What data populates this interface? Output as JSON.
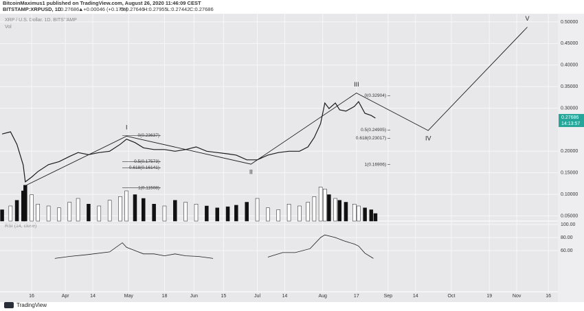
{
  "header": {
    "publisher": "BitcoinMaximus1 published on TradingView.com, August 26, 2020 11:46:09 CEST",
    "symbol": "BITSTAMP:XRPUSD, 1D",
    "last": "0.27686",
    "change": "▲+0.00046 (+0.17%)",
    "ohlc": [
      "O:0.27646",
      "H:0.27955",
      "L:0.27442",
      "C:0.27686"
    ]
  },
  "chart_data": {
    "type": "line",
    "title": "XRP / U.S. Dollar, 1D, BITSTAMP",
    "volume_label": "Vol",
    "x": [
      1,
      5,
      8,
      11,
      12,
      15,
      18,
      23,
      28,
      33,
      37,
      42,
      47,
      52,
      57,
      60,
      64,
      68,
      73,
      78,
      83,
      88,
      93,
      98,
      103,
      108,
      112,
      117,
      122,
      127,
      132,
      137,
      142,
      146,
      149,
      152,
      154,
      156,
      159,
      161,
      164,
      168,
      170,
      173,
      176,
      178
    ],
    "series": [
      {
        "name": "XRPUSD",
        "color": "#1a1a1a",
        "values": [
          0.24,
          0.245,
          0.216,
          0.168,
          0.129,
          0.14,
          0.153,
          0.169,
          0.176,
          0.188,
          0.197,
          0.192,
          0.197,
          0.2,
          0.216,
          0.228,
          0.22,
          0.208,
          0.204,
          0.204,
          0.2,
          0.204,
          0.21,
          0.2,
          0.197,
          0.194,
          0.191,
          0.18,
          0.18,
          0.191,
          0.197,
          0.2,
          0.2,
          0.21,
          0.232,
          0.264,
          0.312,
          0.299,
          0.312,
          0.296,
          0.293,
          0.304,
          0.315,
          0.288,
          0.283,
          0.27686
        ]
      }
    ],
    "volume": {
      "color": "#111111",
      "values": [
        30,
        40,
        55,
        80,
        95,
        70,
        45,
        40,
        35,
        50,
        60,
        45,
        40,
        55,
        65,
        80,
        70,
        60,
        45,
        40,
        55,
        50,
        45,
        40,
        35,
        38,
        42,
        50,
        60,
        35,
        30,
        45,
        40,
        50,
        65,
        90,
        85,
        70,
        60,
        55,
        50,
        45,
        40,
        35,
        30,
        20
      ],
      "lim": [
        0,
        100
      ]
    },
    "xlim": [
      0,
      264.5
    ],
    "ylim": [
      0.038,
      0.519
    ],
    "xticks": [
      {
        "value": 15,
        "label": "16"
      },
      {
        "value": 31,
        "label": "Apr"
      },
      {
        "value": 44,
        "label": "14"
      },
      {
        "value": 61,
        "label": "May"
      },
      {
        "value": 78,
        "label": "18"
      },
      {
        "value": 92,
        "label": "Jun"
      },
      {
        "value": 106,
        "label": "15"
      },
      {
        "value": 122,
        "label": "Jul"
      },
      {
        "value": 135,
        "label": "14"
      },
      {
        "value": 153,
        "label": "Aug"
      },
      {
        "value": 169,
        "label": "17"
      },
      {
        "value": 184,
        "label": "Sep"
      },
      {
        "value": 197,
        "label": "14"
      },
      {
        "value": 214,
        "label": "Oct"
      },
      {
        "value": 232,
        "label": "19"
      },
      {
        "value": 245,
        "label": "Nov"
      },
      {
        "value": 260,
        "label": "16"
      }
    ],
    "yticks": [
      {
        "value": 0.5,
        "label": "0.50000"
      },
      {
        "value": 0.45,
        "label": "0.45000"
      },
      {
        "value": 0.4,
        "label": "0.40000"
      },
      {
        "value": 0.35,
        "label": "0.35000"
      },
      {
        "value": 0.3,
        "label": "0.30000"
      },
      {
        "value": 0.2,
        "label": "0.20000"
      },
      {
        "value": 0.15,
        "label": "0.15000"
      },
      {
        "value": 0.1,
        "label": "0.10000"
      },
      {
        "value": 0.05,
        "label": "0.05000"
      }
    ],
    "grid": true,
    "price_tag": {
      "value": 0.27686,
      "label": "0.27686",
      "countdown": "14:13:57",
      "color": "#26a69a"
    },
    "waves": {
      "color": "#1a1a1a",
      "x": [
        12,
        60,
        119,
        169,
        203,
        250
      ],
      "values": [
        0.12,
        0.235,
        0.17,
        0.335,
        0.248,
        0.488
      ],
      "labels": [
        null,
        "I",
        "II",
        "III",
        "IV",
        "V"
      ]
    },
    "fibs": [
      {
        "value": 0.23637,
        "label": "0(0.23637)"
      },
      {
        "value": 0.17573,
        "label": "0.5(0.17573)"
      },
      {
        "value": 0.16141,
        "label": "0.618(0.16141)"
      },
      {
        "value": 0.11508,
        "label": "1(0.11508)"
      },
      {
        "value": 0.32904,
        "label": "0(0.32904)"
      },
      {
        "value": 0.24905,
        "label": "0.5(0.24905)"
      },
      {
        "value": 0.23017,
        "label": "0.618(0.23017)"
      },
      {
        "value": 0.16906,
        "label": "1(0.16906)"
      }
    ],
    "rsi": {
      "title": "RSI (14, close)",
      "color": "#1a1a1a",
      "x": [
        26,
        33,
        42,
        52,
        58,
        60,
        64,
        68,
        73,
        78,
        83,
        88,
        94,
        101,
        115,
        127,
        134,
        140,
        147,
        152,
        154,
        159,
        163,
        168,
        170,
        173,
        177
      ],
      "values": [
        48,
        51,
        54,
        58,
        72,
        65,
        60,
        55,
        55,
        52,
        55,
        52,
        51,
        48,
        null,
        50,
        57,
        57,
        63,
        80,
        84,
        80,
        75,
        70,
        67,
        56,
        48
      ],
      "ylim": [
        -3.2,
        105.3
      ],
      "yticks": [
        {
          "value": 100,
          "label": "100.00"
        },
        {
          "value": 80,
          "label": "80.00"
        },
        {
          "value": 60,
          "label": "60.00"
        }
      ]
    },
    "footer": "TradingView"
  }
}
